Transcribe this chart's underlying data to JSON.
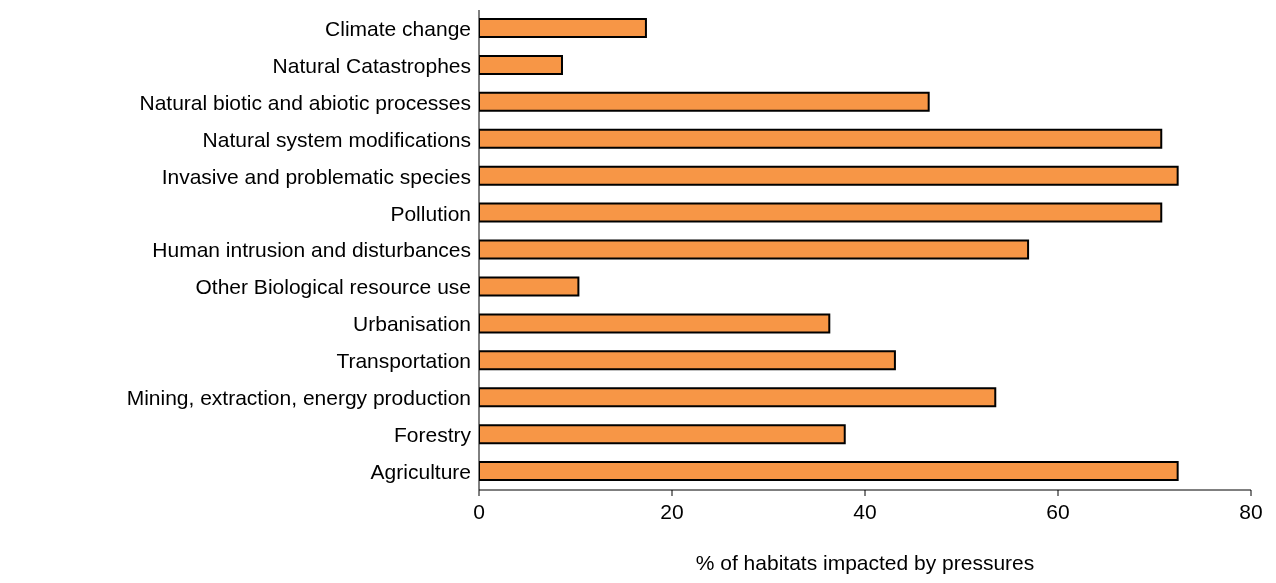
{
  "chart_data": {
    "type": "bar",
    "orientation": "horizontal",
    "xlabel": "% of habitats impacted by pressures",
    "categories": [
      "Climate change",
      "Natural Catastrophes",
      "Natural biotic and abiotic processes",
      "Natural system modifications",
      "Invasive and problematic species",
      "Pollution",
      "Human intrusion and disturbances",
      "Other Biological resource use",
      "Urbanisation",
      "Transportation",
      "Mining, extraction, energy production",
      "Forestry",
      "Agriculture"
    ],
    "values": [
      17.3,
      8.6,
      46.6,
      70.7,
      72.4,
      70.7,
      56.9,
      10.3,
      36.3,
      43.1,
      53.5,
      37.9,
      72.4
    ],
    "color": "#f79646",
    "xlim": [
      0,
      80
    ],
    "xticks": [
      0,
      20,
      40,
      60,
      80
    ],
    "grid": false,
    "legend": false
  }
}
